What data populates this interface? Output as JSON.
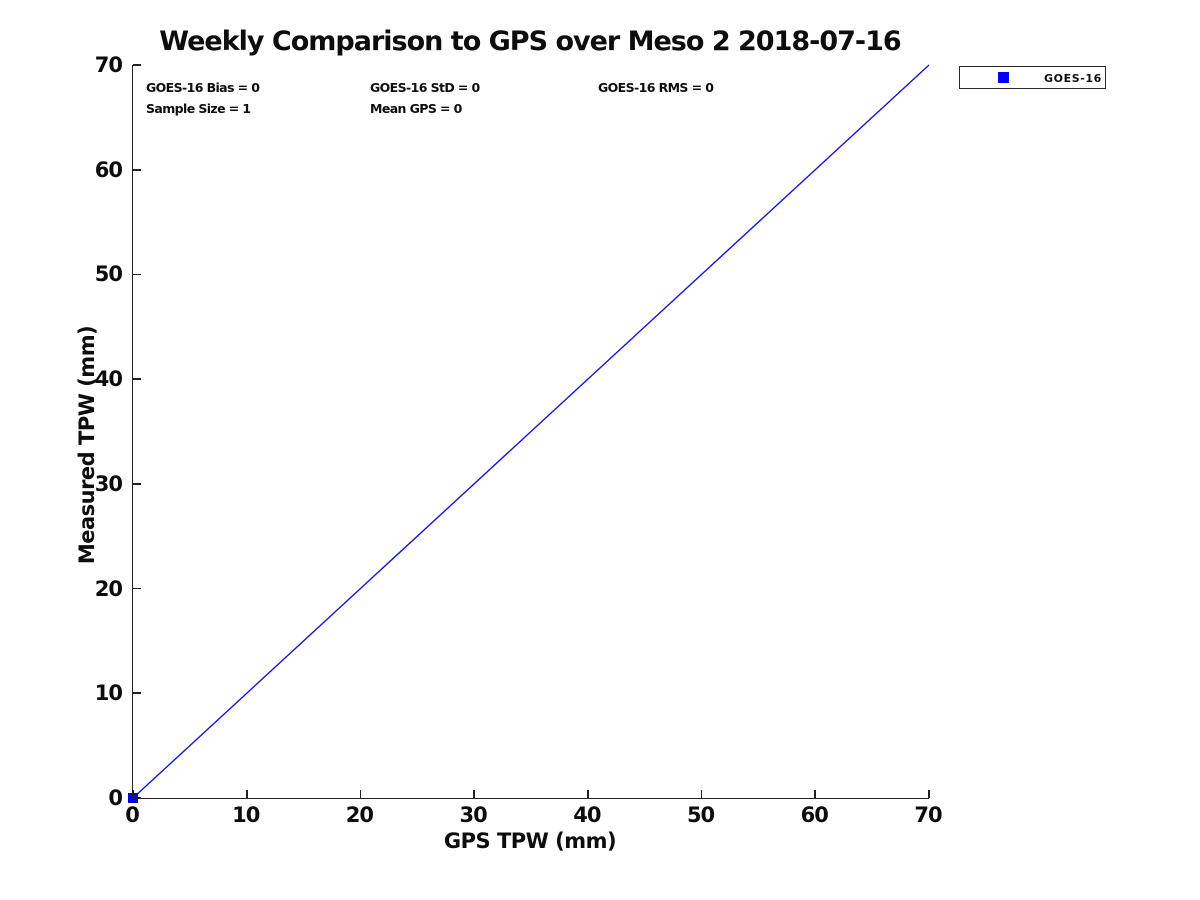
{
  "chart_data": {
    "type": "scatter",
    "title": "Weekly Comparison to GPS over Meso 2 2018-07-16",
    "xlabel": "GPS TPW (mm)",
    "ylabel": "Measured TPW (mm)",
    "xlim": [
      0,
      70
    ],
    "ylim": [
      0,
      70
    ],
    "xticks": [
      0,
      10,
      20,
      30,
      40,
      50,
      60,
      70
    ],
    "yticks": [
      0,
      10,
      20,
      30,
      40,
      50,
      60,
      70
    ],
    "grid": false,
    "background_color": "#ffffff",
    "axis_color": "#212121",
    "text_color": "#0d0d0d",
    "series": [
      {
        "name": "one-to-one-reference-line",
        "type": "line",
        "color": "#1616cf",
        "line_width": 1.4,
        "x": [
          0,
          70
        ],
        "y": [
          0,
          70
        ]
      },
      {
        "name": "GOES-16",
        "type": "scatter",
        "marker": "square",
        "marker_size": 9,
        "color": "#0000ff",
        "edge_color": "#0000c8",
        "x": [
          0
        ],
        "y": [
          0
        ]
      }
    ],
    "legend": {
      "position": "outside-top-right",
      "entries": [
        {
          "label": "GOES-16",
          "marker": "square",
          "color": "#0000ff"
        }
      ]
    },
    "stats_annotations": {
      "row1": [
        "GOES-16 Bias = 0",
        "GOES-16 StD = 0",
        "GOES-16 RMS = 0"
      ],
      "row2": [
        "Sample Size = 1",
        "Mean GPS = 0"
      ]
    }
  }
}
